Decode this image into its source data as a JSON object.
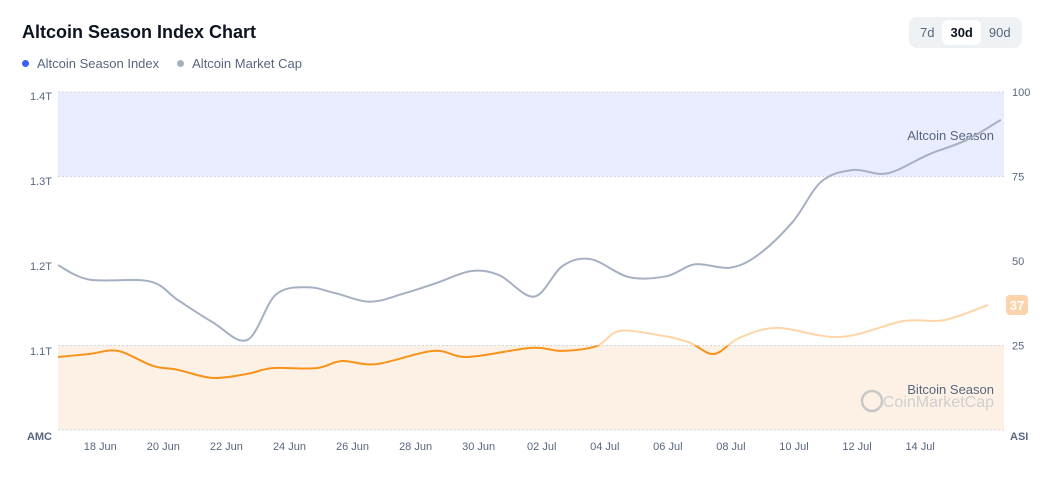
{
  "header": {
    "title": "Altcoin Season Index Chart"
  },
  "legend": [
    {
      "label": "Altcoin Season Index",
      "color": "#3861fb"
    },
    {
      "label": "Altcoin Market Cap",
      "color": "#a6b0c3"
    }
  ],
  "range_selector": {
    "options": [
      "7d",
      "30d",
      "90d"
    ],
    "selected": "30d"
  },
  "chart_data": {
    "type": "line",
    "title": "Altcoin Season Index Chart",
    "x_ticks": [
      "18 Jun",
      "20 Jun",
      "22 Jun",
      "24 Jun",
      "26 Jun",
      "28 Jun",
      "30 Jun",
      "02 Jul",
      "04 Jul",
      "06 Jul",
      "08 Jul",
      "10 Jul",
      "12 Jul",
      "14 Jul"
    ],
    "left_axis": {
      "label": "AMC",
      "ticks": [
        "1.1T",
        "1.2T",
        "1.3T",
        "1.4T"
      ],
      "range": [
        1.0,
        1.4
      ],
      "unit": "T"
    },
    "right_axis": {
      "label": "ASI",
      "ticks": [
        "25",
        "50",
        "75",
        "100"
      ],
      "range": [
        0,
        100
      ]
    },
    "zones": [
      {
        "label": "Altcoin Season",
        "range": [
          75,
          100
        ],
        "color": "#eaedfd"
      },
      {
        "label": "Bitcoin Season",
        "range": [
          0,
          25
        ],
        "color": "#fdf1e6"
      }
    ],
    "x_range_days": [
      0,
      30
    ],
    "series": [
      {
        "name": "Altcoin Market Cap",
        "axis": "left",
        "color": "#a6b0c3",
        "x": [
          0,
          1,
          2.9,
          3.8,
          4.9,
          6,
          6.9,
          7.9,
          8.8,
          9.9,
          11,
          12,
          13.1,
          14,
          15.1,
          16,
          16.9,
          18.1,
          19.3,
          20.2,
          21.3,
          22.2,
          23.3,
          24.2,
          25.2,
          26.3,
          27.6,
          28.8,
          29.9
        ],
        "values": [
          1.201,
          1.184,
          1.182,
          1.16,
          1.134,
          1.113,
          1.166,
          1.175,
          1.168,
          1.158,
          1.168,
          1.18,
          1.194,
          1.189,
          1.164,
          1.2,
          1.208,
          1.187,
          1.188,
          1.202,
          1.198,
          1.213,
          1.252,
          1.299,
          1.313,
          1.309,
          1.331,
          1.348,
          1.372
        ]
      },
      {
        "name": "Altcoin Season Index",
        "axis": "right",
        "color": "#f7931a",
        "color_above": "#fdd5a8",
        "x": [
          0,
          1,
          1.9,
          3,
          3.8,
          4.9,
          6,
          6.8,
          8.2,
          9,
          10.1,
          11.9,
          13,
          15,
          16,
          17.1,
          17.8,
          19.1,
          20,
          20.8,
          21.6,
          22.8,
          24.8,
          26.8,
          28.1,
          29.5
        ],
        "values": [
          21.6,
          22.5,
          23.4,
          19,
          17.8,
          15.4,
          16.6,
          18.3,
          18.3,
          20.4,
          19.5,
          23.4,
          21.6,
          24.3,
          23.4,
          24.9,
          29.3,
          28,
          26,
          22.5,
          27.2,
          30.2,
          27.5,
          32.2,
          32.5,
          37
        ]
      }
    ],
    "current_value_label": "37",
    "watermark": "CoinMarketCap"
  }
}
